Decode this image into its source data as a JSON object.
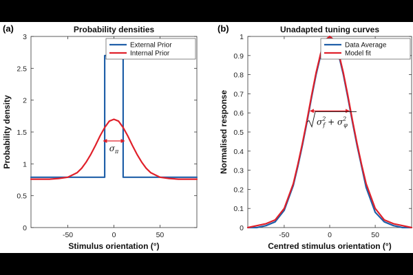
{
  "chart_data": [
    {
      "type": "line",
      "panel_label": "(a)",
      "title": "Probability densities",
      "xlabel": "Stimulus orientation (°)",
      "ylabel": "Probability density",
      "xlim": [
        -90,
        90
      ],
      "ylim": [
        0,
        3
      ],
      "xticks": [
        -50,
        0,
        50
      ],
      "yticks": [
        0,
        0.5,
        1,
        1.5,
        2,
        2.5,
        3
      ],
      "legend": {
        "position": "top-right"
      },
      "annotation": {
        "text": "σ",
        "subscript": "π",
        "x_range": [
          -12,
          12
        ],
        "y": 1.36
      },
      "series": [
        {
          "name": "External Prior",
          "color": "#1f5fa8",
          "x": [
            -90,
            -10,
            -10,
            10,
            10,
            90
          ],
          "y": [
            0.79,
            0.79,
            2.7,
            2.7,
            0.79,
            0.79
          ]
        },
        {
          "name": "Internal Prior",
          "color": "#e0202a",
          "x": [
            -90,
            -80,
            -70,
            -60,
            -50,
            -40,
            -35,
            -30,
            -25,
            -20,
            -15,
            -10,
            -5,
            0,
            5,
            10,
            15,
            20,
            25,
            30,
            35,
            40,
            50,
            60,
            70,
            80,
            90
          ],
          "y": [
            0.76,
            0.76,
            0.76,
            0.77,
            0.79,
            0.86,
            0.93,
            1.03,
            1.15,
            1.29,
            1.44,
            1.57,
            1.67,
            1.7,
            1.67,
            1.57,
            1.44,
            1.29,
            1.15,
            1.03,
            0.93,
            0.86,
            0.79,
            0.77,
            0.76,
            0.76,
            0.76
          ]
        }
      ]
    },
    {
      "type": "line",
      "panel_label": "(b)",
      "title": "Unadapted tuning curves",
      "xlabel": "Centred stimulus orientation (°)",
      "ylabel": "Normalised response",
      "xlim": [
        -90,
        90
      ],
      "ylim": [
        0,
        1
      ],
      "xticks": [
        -50,
        0,
        50
      ],
      "yticks": [
        0,
        0.1,
        0.2,
        0.3,
        0.4,
        0.5,
        0.6,
        0.7,
        0.8,
        0.9,
        1
      ],
      "legend": {
        "position": "top-right"
      },
      "annotation": {
        "text": "σ²_f + σ²_φ",
        "x_range": [
          -22,
          22
        ],
        "y": 0.61
      },
      "series": [
        {
          "name": "Data Average",
          "color": "#1f5fa8",
          "x": [
            -90,
            -80,
            -70,
            -60,
            -50,
            -40,
            -35,
            -30,
            -25,
            -20,
            -15,
            -10,
            -5,
            0,
            5,
            10,
            15,
            20,
            25,
            30,
            35,
            40,
            50,
            60,
            70,
            80,
            90
          ],
          "y": [
            0.0,
            0.0,
            0.01,
            0.03,
            0.09,
            0.22,
            0.32,
            0.43,
            0.55,
            0.68,
            0.8,
            0.9,
            0.97,
            1.0,
            0.97,
            0.9,
            0.8,
            0.68,
            0.55,
            0.43,
            0.32,
            0.21,
            0.08,
            0.03,
            0.01,
            0.0,
            0.0
          ]
        },
        {
          "name": "Model fit",
          "color": "#e0202a",
          "x": [
            -90,
            -80,
            -70,
            -60,
            -50,
            -40,
            -35,
            -30,
            -25,
            -20,
            -15,
            -10,
            -5,
            0,
            5,
            10,
            15,
            20,
            25,
            30,
            35,
            40,
            50,
            60,
            70,
            80,
            90
          ],
          "y": [
            0.0,
            0.01,
            0.02,
            0.04,
            0.1,
            0.23,
            0.33,
            0.44,
            0.56,
            0.69,
            0.81,
            0.91,
            0.98,
            1.0,
            0.98,
            0.91,
            0.81,
            0.69,
            0.56,
            0.44,
            0.33,
            0.23,
            0.1,
            0.04,
            0.02,
            0.01,
            0.0
          ]
        }
      ]
    }
  ]
}
